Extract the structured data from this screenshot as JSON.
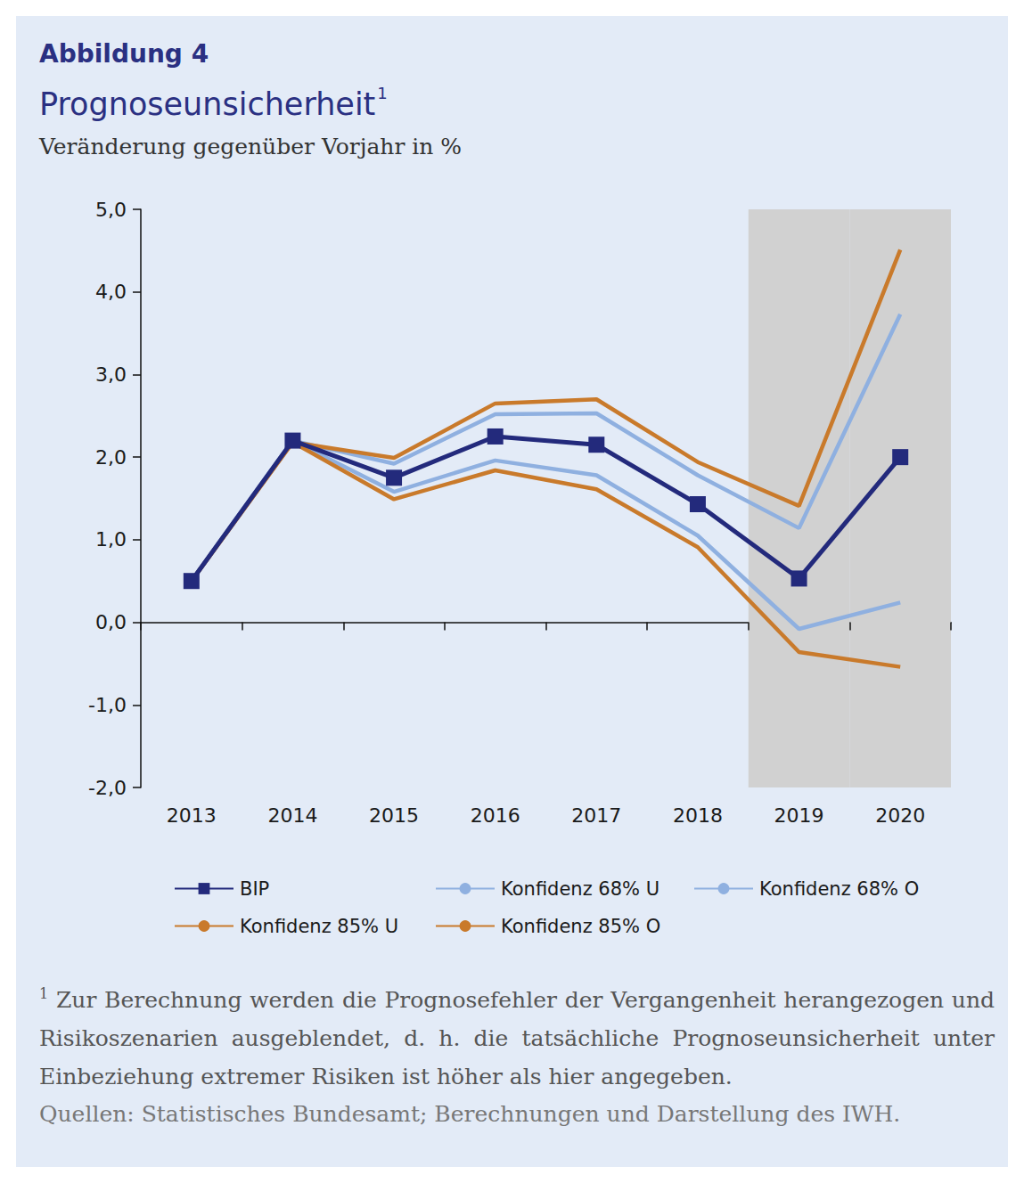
{
  "chart_data": {
    "type": "line",
    "figure_label": "Abbildung 4",
    "title": "Prognoseunsicherheit",
    "title_note": "1",
    "ylabel": "Veränderung gegenüber Vorjahr in %",
    "categories": [
      "2013",
      "2014",
      "2015",
      "2016",
      "2017",
      "2018",
      "2019",
      "2020"
    ],
    "highlight": {
      "from": "2019",
      "to": "2020"
    },
    "series": [
      {
        "name": "BIP",
        "color": "#232a7c",
        "marker": "square",
        "line_style": "solid",
        "values": [
          0.5,
          2.2,
          1.75,
          2.25,
          2.15,
          1.43,
          0.53,
          2.0
        ]
      },
      {
        "name": "Konfidenz 68% U",
        "color": "#8fb0e0",
        "marker": "none",
        "line_style": "solid",
        "values": [
          0.5,
          2.2,
          1.58,
          1.96,
          1.78,
          1.05,
          -0.08,
          0.24
        ]
      },
      {
        "name": "Konfidenz 68% O",
        "color": "#8fb0e0",
        "marker": "none",
        "line_style": "solid",
        "values": [
          0.5,
          2.2,
          1.92,
          2.52,
          2.53,
          1.78,
          1.14,
          3.73
        ]
      },
      {
        "name": "Konfidenz 85% U",
        "color": "#c97a2b",
        "marker": "none",
        "line_style": "solid",
        "values": [
          0.5,
          2.18,
          1.49,
          1.84,
          1.61,
          0.91,
          -0.36,
          -0.54
        ]
      },
      {
        "name": "Konfidenz 85% O",
        "color": "#c97a2b",
        "marker": "none",
        "line_style": "solid",
        "values": [
          0.5,
          2.18,
          1.99,
          2.65,
          2.7,
          1.94,
          1.41,
          4.51
        ]
      }
    ],
    "ylim": [
      -2,
      5
    ],
    "yticks": [
      {
        "value": -2,
        "label": "-2,0"
      },
      {
        "value": -1,
        "label": "-1,0"
      },
      {
        "value": 0,
        "label": "0,0"
      },
      {
        "value": 1,
        "label": "1,0"
      },
      {
        "value": 2,
        "label": "2,0"
      },
      {
        "value": 3,
        "label": "3,0"
      },
      {
        "value": 4,
        "label": "4,0"
      },
      {
        "value": 5,
        "label": "5,0"
      }
    ],
    "grid": false,
    "legend": "bottom",
    "footnote": {
      "marker": "1",
      "text": "Zur Berechnung werden die Prognosefehler der Vergangenheit herangezogen und Risikoszenarien ausgeblendet, d. h. die tatsächliche Prognoseunsicherheit unter Einbeziehung extremer Risiken ist höher als hier angegeben."
    },
    "source": "Quellen: Statistisches Bundesamt; Berechnungen und Darstellung des IWH."
  }
}
